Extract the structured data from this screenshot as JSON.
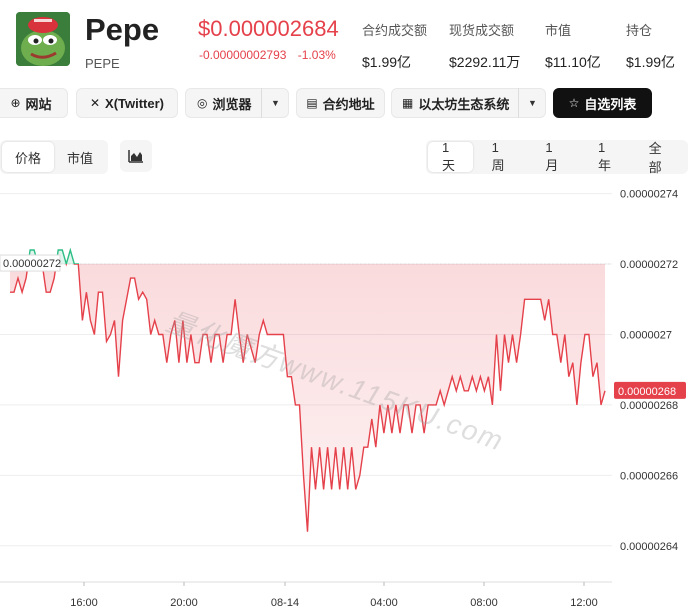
{
  "token": {
    "name": "Pepe",
    "symbol": "PEPE",
    "price": "$0.000002684",
    "change_abs": "-0.00000002793",
    "change_pct": "-1.03%"
  },
  "stats": [
    {
      "label": "合约成交额",
      "value": "$1.99亿"
    },
    {
      "label": "现货成交额",
      "value": "$2292.11万"
    },
    {
      "label": "市值",
      "value": "$11.10亿"
    },
    {
      "label": "持仓",
      "value": "$1.99亿"
    }
  ],
  "toolbar": {
    "website": "网站",
    "twitter": "X(Twitter)",
    "explorer": "浏览器",
    "contract": "合约地址",
    "ecosystem": "以太坊生态系统",
    "watchlist": "自选列表"
  },
  "tabs_left": [
    "价格",
    "市值"
  ],
  "tabs_right": [
    "1天",
    "1周",
    "1月",
    "1年",
    "全部"
  ],
  "watermark": "量化魔方www.115KU.com",
  "colors": {
    "up": "#2dbd85",
    "down": "#e5414b",
    "accent": "#111111"
  },
  "chart_data": {
    "type": "line",
    "x_ticks": [
      "16:00",
      "20:00",
      "08-14",
      "04:00",
      "08:00",
      "12:00"
    ],
    "y_ticks": [
      "0.00000274",
      "0.00000272",
      "0.0000027",
      "0.00000268",
      "0.00000266",
      "0.00000264"
    ],
    "baseline_label": "0.00000272",
    "current_label": "0.00000268",
    "baseline": 2.72e-06,
    "ylim": [
      2.63e-06,
      2.745e-06
    ],
    "values": [
      2.712e-06,
      2.712e-06,
      2.716e-06,
      2.712e-06,
      2.716e-06,
      2.724e-06,
      2.724e-06,
      2.72e-06,
      2.72e-06,
      2.712e-06,
      2.712e-06,
      2.716e-06,
      2.724e-06,
      2.724e-06,
      2.72e-06,
      2.724e-06,
      2.72e-06,
      2.72e-06,
      2.704e-06,
      2.712e-06,
      2.704e-06,
      2.7e-06,
      2.712e-06,
      2.712e-06,
      2.698e-06,
      2.7e-06,
      2.704e-06,
      2.688e-06,
      2.704e-06,
      2.71e-06,
      2.716e-06,
      2.716e-06,
      2.71e-06,
      2.712e-06,
      2.71e-06,
      2.7e-06,
      2.704e-06,
      2.7e-06,
      2.7e-06,
      2.692e-06,
      2.7e-06,
      2.704e-06,
      2.692e-06,
      2.704e-06,
      2.692e-06,
      2.7e-06,
      2.692e-06,
      2.692e-06,
      2.7e-06,
      2.7e-06,
      2.692e-06,
      2.7e-06,
      2.7e-06,
      2.692e-06,
      2.7e-06,
      2.7e-06,
      2.71e-06,
      2.7e-06,
      2.692e-06,
      2.7e-06,
      2.696e-06,
      2.692e-06,
      2.7e-06,
      2.704e-06,
      2.7e-06,
      2.7e-06,
      2.7e-06,
      2.7e-06,
      2.7e-06,
      2.688e-06,
      2.688e-06,
      2.68e-06,
      2.68e-06,
      2.66e-06,
      2.644e-06,
      2.668e-06,
      2.656e-06,
      2.668e-06,
      2.656e-06,
      2.668e-06,
      2.656e-06,
      2.668e-06,
      2.656e-06,
      2.668e-06,
      2.656e-06,
      2.668e-06,
      2.656e-06,
      2.66e-06,
      2.668e-06,
      2.668e-06,
      2.676e-06,
      2.668e-06,
      2.68e-06,
      2.672e-06,
      2.68e-06,
      2.672e-06,
      2.68e-06,
      2.672e-06,
      2.68e-06,
      2.68e-06,
      2.672e-06,
      2.68e-06,
      2.68e-06,
      2.672e-06,
      2.68e-06,
      2.68e-06,
      2.68e-06,
      2.684e-06,
      2.68e-06,
      2.684e-06,
      2.688e-06,
      2.684e-06,
      2.688e-06,
      2.684e-06,
      2.684e-06,
      2.688e-06,
      2.684e-06,
      2.688e-06,
      2.684e-06,
      2.688e-06,
      2.68e-06,
      2.7e-06,
      2.684e-06,
      2.7e-06,
      2.692e-06,
      2.7e-06,
      2.692e-06,
      2.7e-06,
      2.71e-06,
      2.71e-06,
      2.71e-06,
      2.71e-06,
      2.71e-06,
      2.704e-06,
      2.71e-06,
      2.7e-06,
      2.7e-06,
      2.692e-06,
      2.7e-06,
      2.688e-06,
      2.692e-06,
      2.68e-06,
      2.692e-06,
      2.7e-06,
      2.7e-06,
      2.688e-06,
      2.692e-06,
      2.68e-06,
      2.684e-06
    ]
  }
}
